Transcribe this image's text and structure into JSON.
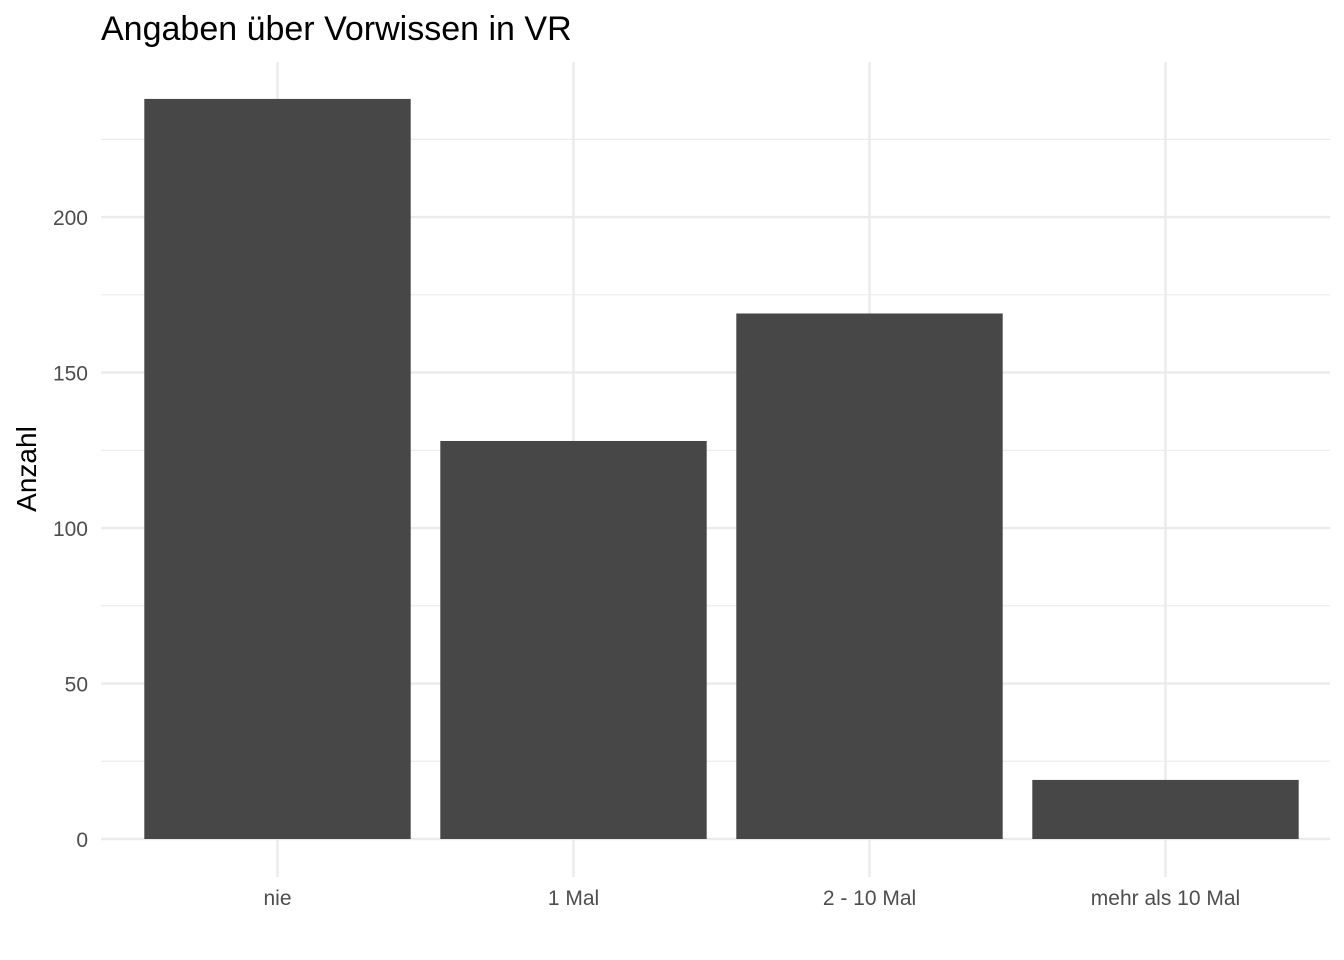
{
  "chart_data": {
    "type": "bar",
    "title": "Angaben über Vorwissen in VR",
    "xlabel": "",
    "ylabel": "Anzahl",
    "categories": [
      "nie",
      "1 Mal",
      "2 - 10 Mal",
      "mehr als 10 Mal"
    ],
    "values": [
      238,
      128,
      169,
      19
    ],
    "ylim": [
      0,
      250
    ],
    "yticks": [
      0,
      50,
      100,
      150,
      200
    ],
    "grid": true,
    "legend": "none",
    "bar_color": "#474747"
  }
}
